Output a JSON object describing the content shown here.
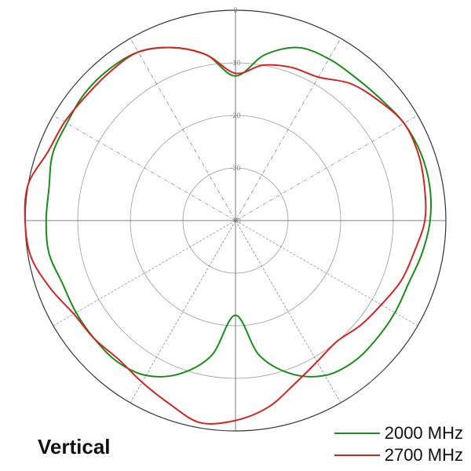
{
  "caption": "Vertical",
  "chart_data": {
    "type": "polar-line",
    "r_ticks": [
      "0",
      "-10",
      "-20",
      "-30",
      "-40"
    ],
    "r_range": [
      -40,
      0
    ],
    "angle_spokes_deg": [
      0,
      30,
      60,
      90,
      120,
      150,
      180,
      210,
      240,
      270,
      300,
      330
    ],
    "grid": true,
    "legend_position": "bottom-right",
    "series": [
      {
        "name": "2000 MHz",
        "color": "#1a8c1a",
        "angles_deg": [
          0,
          10,
          20,
          30,
          40,
          50,
          60,
          70,
          80,
          90,
          100,
          110,
          120,
          130,
          140,
          150,
          160,
          170,
          180,
          190,
          200,
          210,
          220,
          230,
          240,
          250,
          260,
          270,
          280,
          290,
          300,
          310,
          320,
          330,
          340,
          350
        ],
        "values_db": [
          -12.5,
          -8,
          -5,
          -4.5,
          -4.5,
          -4,
          -3,
          -2.5,
          -2.5,
          -3,
          -4,
          -5,
          -5,
          -5,
          -5,
          -6,
          -9,
          -14,
          -22,
          -14,
          -9,
          -6,
          -5,
          -5,
          -5,
          -5,
          -4,
          -4,
          -4,
          -3,
          -3,
          -2.5,
          -2.5,
          -3,
          -5,
          -8
        ]
      },
      {
        "name": "2700 MHz",
        "color": "#d42323",
        "angles_deg": [
          0,
          10,
          20,
          30,
          40,
          50,
          60,
          70,
          80,
          90,
          100,
          110,
          120,
          130,
          140,
          150,
          160,
          170,
          180,
          190,
          200,
          210,
          220,
          230,
          240,
          250,
          260,
          270,
          280,
          290,
          300,
          310,
          320,
          330,
          340,
          350
        ],
        "values_db": [
          -12,
          -10,
          -9,
          -8.5,
          -6,
          -4.5,
          -3,
          -3,
          -3.5,
          -4,
          -5.5,
          -6.5,
          -8,
          -9,
          -10,
          -9,
          -7,
          -4,
          -2,
          -1,
          -3,
          -4.5,
          -5.5,
          -5,
          -4.5,
          -2.5,
          -0.5,
          0,
          0,
          -2,
          -2.5,
          -3,
          -3,
          -3,
          -5,
          -8
        ]
      }
    ]
  }
}
